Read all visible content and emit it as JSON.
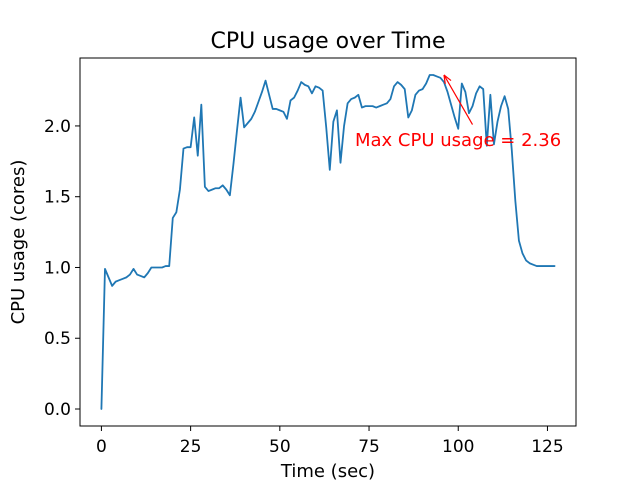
{
  "chart_data": {
    "type": "line",
    "title": "CPU usage over Time",
    "xlabel": "Time (sec)",
    "ylabel": "CPU usage (cores)",
    "xlim": [
      -6,
      133
    ],
    "ylim": [
      -0.12,
      2.48
    ],
    "xticks": [
      0,
      25,
      50,
      75,
      100,
      125
    ],
    "xtick_labels": [
      "0",
      "25",
      "50",
      "75",
      "100",
      "125"
    ],
    "yticks": [
      0.0,
      0.5,
      1.0,
      1.5,
      2.0
    ],
    "ytick_labels": [
      "0.0",
      "0.5",
      "1.0",
      "1.5",
      "2.0"
    ],
    "grid": false,
    "series": [
      {
        "color": "#1f77b4",
        "x": [
          0,
          1,
          2,
          3,
          4,
          5,
          6,
          7,
          8,
          9,
          10,
          11,
          12,
          13,
          14,
          15,
          16,
          17,
          18,
          19,
          20,
          21,
          22,
          23,
          24,
          25,
          26,
          27,
          28,
          29,
          30,
          31,
          32,
          33,
          34,
          35,
          36,
          37,
          38,
          39,
          40,
          41,
          42,
          43,
          44,
          45,
          46,
          47,
          48,
          49,
          50,
          51,
          52,
          53,
          54,
          55,
          56,
          57,
          58,
          59,
          60,
          61,
          62,
          63,
          64,
          65,
          66,
          67,
          68,
          69,
          70,
          71,
          72,
          73,
          74,
          75,
          76,
          77,
          78,
          79,
          80,
          81,
          82,
          83,
          84,
          85,
          86,
          87,
          88,
          89,
          90,
          91,
          92,
          93,
          94,
          95,
          96,
          97,
          98,
          99,
          100,
          101,
          102,
          103,
          104,
          105,
          106,
          107,
          108,
          109,
          110,
          111,
          112,
          113,
          114,
          115,
          116,
          117,
          118,
          119,
          120,
          121,
          122,
          123,
          124,
          125,
          126,
          127
        ],
        "y": [
          0.0,
          0.99,
          0.93,
          0.87,
          0.9,
          0.91,
          0.92,
          0.93,
          0.95,
          0.99,
          0.95,
          0.94,
          0.93,
          0.96,
          1.0,
          1.0,
          1.0,
          1.0,
          1.01,
          1.01,
          1.35,
          1.39,
          1.55,
          1.84,
          1.85,
          1.85,
          2.06,
          1.79,
          2.15,
          1.57,
          1.54,
          1.55,
          1.56,
          1.56,
          1.58,
          1.55,
          1.51,
          1.73,
          1.97,
          2.2,
          1.99,
          2.02,
          2.05,
          2.1,
          2.17,
          2.24,
          2.32,
          2.22,
          2.12,
          2.12,
          2.11,
          2.1,
          2.05,
          2.18,
          2.2,
          2.25,
          2.31,
          2.29,
          2.28,
          2.23,
          2.28,
          2.27,
          2.25,
          1.99,
          1.69,
          2.03,
          2.11,
          1.74,
          2.0,
          2.16,
          2.19,
          2.2,
          2.22,
          2.13,
          2.14,
          2.14,
          2.14,
          2.13,
          2.14,
          2.15,
          2.16,
          2.19,
          2.28,
          2.31,
          2.29,
          2.26,
          2.06,
          2.11,
          2.22,
          2.25,
          2.26,
          2.3,
          2.36,
          2.36,
          2.35,
          2.34,
          2.31,
          2.24,
          2.15,
          2.06,
          1.98,
          2.3,
          2.24,
          2.09,
          2.14,
          2.23,
          2.28,
          2.26,
          1.86,
          2.22,
          1.87,
          2.03,
          2.14,
          2.21,
          2.12,
          1.83,
          1.47,
          1.19,
          1.1,
          1.05,
          1.03,
          1.02,
          1.01,
          1.01,
          1.01,
          1.01,
          1.01,
          1.01
        ]
      }
    ],
    "annotation": {
      "text": "Max CPU usage = 2.36",
      "color": "#ff0000",
      "point": [
        96,
        2.36
      ],
      "text_at": [
        104,
        2.01
      ]
    }
  }
}
